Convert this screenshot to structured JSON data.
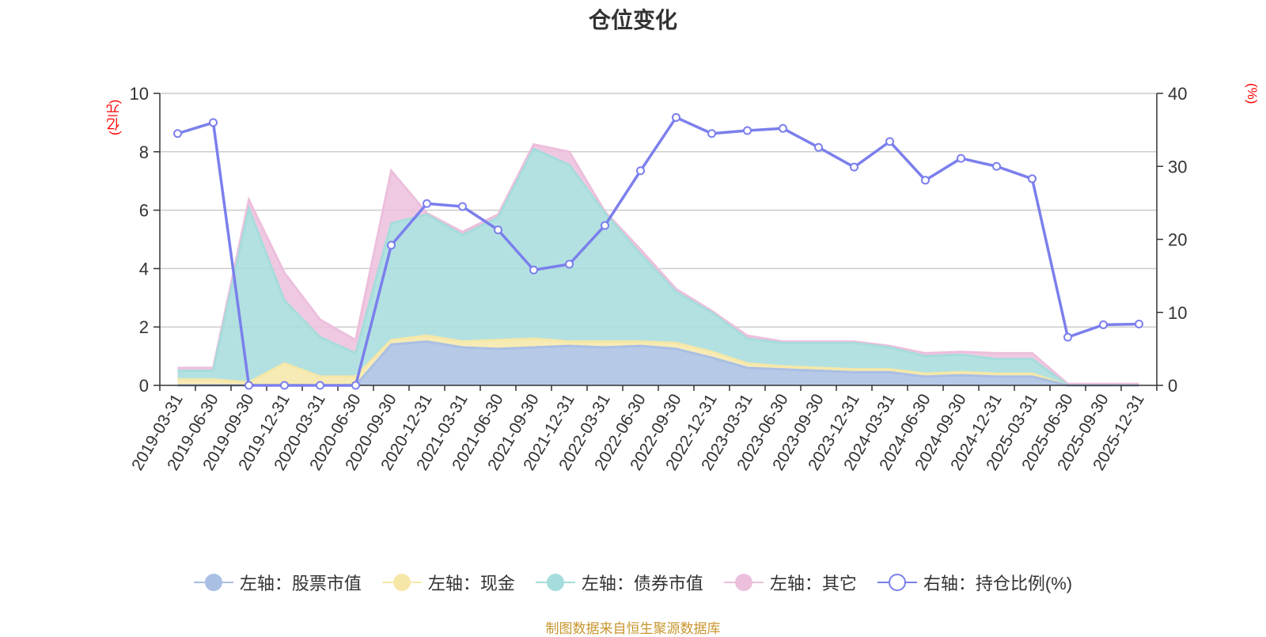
{
  "chart_data": {
    "type": "area",
    "title": "仓位变化",
    "left_axis_unit": "(亿元)",
    "right_axis_unit": "(%)",
    "ylim_left": [
      0,
      10
    ],
    "ylim_right": [
      0,
      40
    ],
    "left_ticks": [
      0,
      2,
      4,
      6,
      8,
      10
    ],
    "right_ticks": [
      0,
      10,
      20,
      30,
      40
    ],
    "grid": true,
    "legend_position": "bottom",
    "categories": [
      "2019-03-31",
      "2019-06-30",
      "2019-09-30",
      "2019-12-31",
      "2020-03-31",
      "2020-06-30",
      "2020-09-30",
      "2020-12-31",
      "2021-03-31",
      "2021-06-30",
      "2021-09-30",
      "2021-12-31",
      "2022-03-31",
      "2022-06-30",
      "2022-09-30",
      "2022-12-31",
      "2023-03-31",
      "2023-06-30",
      "2023-09-30",
      "2023-12-31",
      "2024-03-31",
      "2024-06-30",
      "2024-09-30",
      "2024-12-31",
      "2025-03-31",
      "2025-06-30",
      "2025-09-30",
      "2025-12-31"
    ],
    "series": [
      {
        "name": "左轴：股票市值",
        "axis": "left",
        "kind": "stacked-area",
        "color": "#a9bfe3",
        "values": [
          0.0,
          0.0,
          0.0,
          0.0,
          0.0,
          0.0,
          1.4,
          1.5,
          1.3,
          1.25,
          1.3,
          1.35,
          1.3,
          1.35,
          1.25,
          0.95,
          0.6,
          0.55,
          0.5,
          0.45,
          0.45,
          0.3,
          0.35,
          0.3,
          0.3,
          0.0,
          0.0,
          0.0
        ]
      },
      {
        "name": "左轴：现金",
        "axis": "left",
        "kind": "stacked-area",
        "color": "#f6e7a8",
        "values": [
          0.2,
          0.2,
          0.1,
          0.75,
          0.3,
          0.3,
          0.15,
          0.2,
          0.2,
          0.3,
          0.3,
          0.15,
          0.2,
          0.15,
          0.2,
          0.2,
          0.15,
          0.1,
          0.1,
          0.1,
          0.1,
          0.1,
          0.1,
          0.1,
          0.1,
          0.0,
          0.0,
          0.0
        ]
      },
      {
        "name": "左轴：债券市值",
        "axis": "left",
        "kind": "stacked-area",
        "color": "#a6dcdc",
        "values": [
          0.3,
          0.3,
          5.95,
          2.15,
          1.35,
          0.8,
          4.0,
          4.15,
          3.65,
          4.2,
          6.5,
          6.05,
          4.4,
          3.0,
          1.75,
          1.35,
          0.85,
          0.8,
          0.85,
          0.9,
          0.75,
          0.6,
          0.6,
          0.5,
          0.5,
          0.0,
          0.0,
          0.0
        ]
      },
      {
        "name": "左轴：其它",
        "axis": "left",
        "kind": "stacked-area",
        "color": "#ecbfdc",
        "values": [
          0.1,
          0.1,
          0.3,
          0.95,
          0.6,
          0.45,
          1.8,
          0.05,
          0.1,
          0.1,
          0.15,
          0.45,
          0.05,
          0.15,
          0.1,
          0.05,
          0.1,
          0.05,
          0.05,
          0.05,
          0.05,
          0.1,
          0.1,
          0.2,
          0.2,
          0.05,
          0.05,
          0.05
        ]
      },
      {
        "name": "右轴：持仓比例(%)",
        "axis": "right",
        "kind": "line",
        "color": "#7b7fec",
        "values": [
          34.5,
          36.0,
          0.0,
          0.0,
          0.0,
          0.0,
          19.2,
          24.9,
          24.5,
          21.3,
          15.8,
          16.6,
          21.9,
          29.4,
          36.7,
          34.5,
          34.9,
          35.2,
          32.6,
          29.9,
          33.4,
          28.1,
          31.1,
          30.0,
          28.3,
          6.6,
          8.3,
          8.4
        ]
      }
    ]
  },
  "legend": [
    {
      "label": "左轴：股票市值",
      "color": "#a9bfe3",
      "hollow": false
    },
    {
      "label": "左轴：现金",
      "color": "#f6e7a8",
      "hollow": false
    },
    {
      "label": "左轴：债券市值",
      "color": "#a6dcdc",
      "hollow": false
    },
    {
      "label": "左轴：其它",
      "color": "#ecbfdc",
      "hollow": false
    },
    {
      "label": "右轴：持仓比例(%)",
      "color": "#7b7fec",
      "hollow": true
    }
  ],
  "source_note": "制图数据来自恒生聚源数据库"
}
